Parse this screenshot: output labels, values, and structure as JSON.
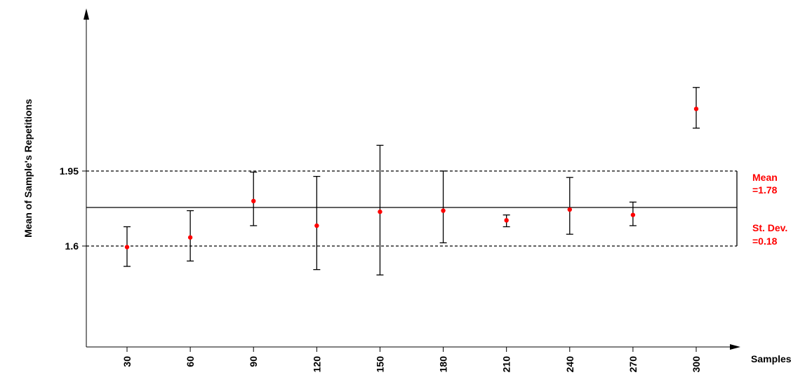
{
  "chart_data": {
    "type": "scatter",
    "ylabel": "Mean of Sample's Repetitions",
    "xlabel": "Samples",
    "x": [
      30,
      60,
      90,
      120,
      150,
      180,
      210,
      240,
      270,
      300
    ],
    "y": [
      1.595,
      1.64,
      1.81,
      1.695,
      1.76,
      1.765,
      1.72,
      1.77,
      1.745,
      2.24
    ],
    "error_low": [
      1.505,
      1.53,
      1.695,
      1.49,
      1.465,
      1.615,
      1.69,
      1.655,
      1.695,
      2.15
    ],
    "error_high": [
      1.69,
      1.765,
      1.945,
      1.925,
      2.07,
      1.95,
      1.745,
      1.92,
      1.805,
      2.34
    ],
    "yticks": [
      1.6,
      1.95
    ],
    "ytick_labels": [
      "1.6",
      "1.95"
    ],
    "xtick_labels": [
      "30",
      "60",
      "90",
      "120",
      "150",
      "180",
      "210",
      "240",
      "270",
      "300"
    ],
    "reference_lines": {
      "mean": 1.78,
      "upper": 1.95,
      "lower": 1.6
    },
    "annotations": {
      "mean_label": "Mean",
      "mean_value": "=1.78",
      "sd_label": "St. Dev.",
      "sd_value": "=0.18"
    },
    "ylim": [
      1.1,
      2.6
    ],
    "grid": false,
    "colors": {
      "points": "#ff0000",
      "annotation": "#ff0000",
      "lines": "#000000"
    }
  }
}
